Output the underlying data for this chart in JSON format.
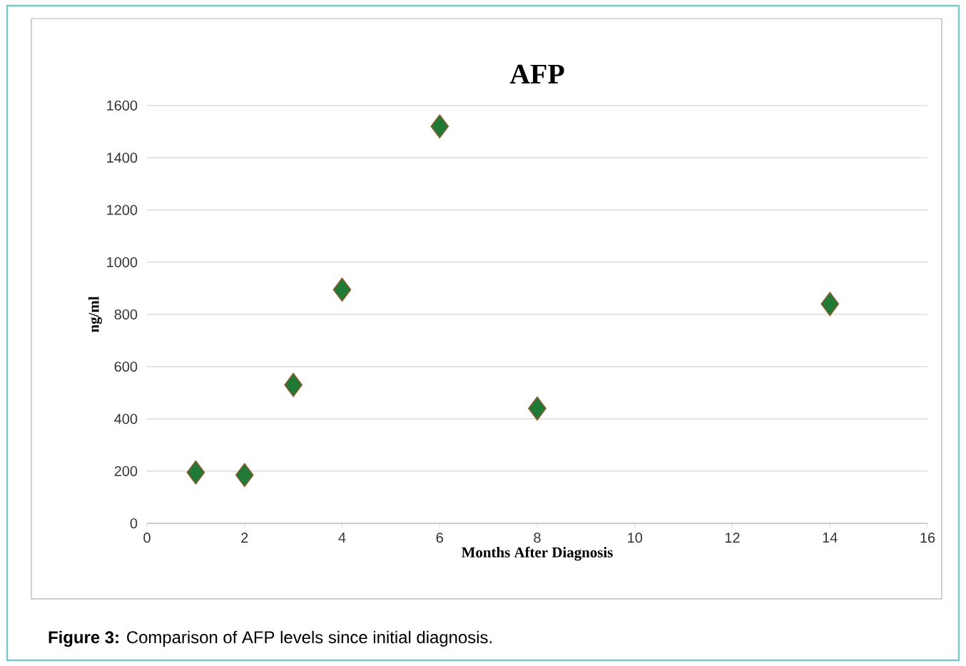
{
  "chart_data": {
    "type": "scatter",
    "title": "AFP",
    "xlabel": "Months After Diagnosis",
    "ylabel": "ng/ml",
    "x": [
      1,
      2,
      3,
      4,
      6,
      8,
      14
    ],
    "values": [
      195,
      185,
      530,
      895,
      1520,
      440,
      840
    ],
    "color": "#1f7a35",
    "marker": "diamond",
    "xlim": [
      0,
      16
    ],
    "xticks": [
      0,
      2,
      4,
      6,
      8,
      10,
      12,
      14,
      16
    ],
    "ylim": [
      0,
      1600
    ],
    "yticks": [
      0,
      200,
      400,
      600,
      800,
      1000,
      1200,
      1400,
      1600
    ],
    "grid": "y",
    "annotations": [
      "**Figure 3:** Comparison of AFP levels since initial diagnosis."
    ]
  }
}
